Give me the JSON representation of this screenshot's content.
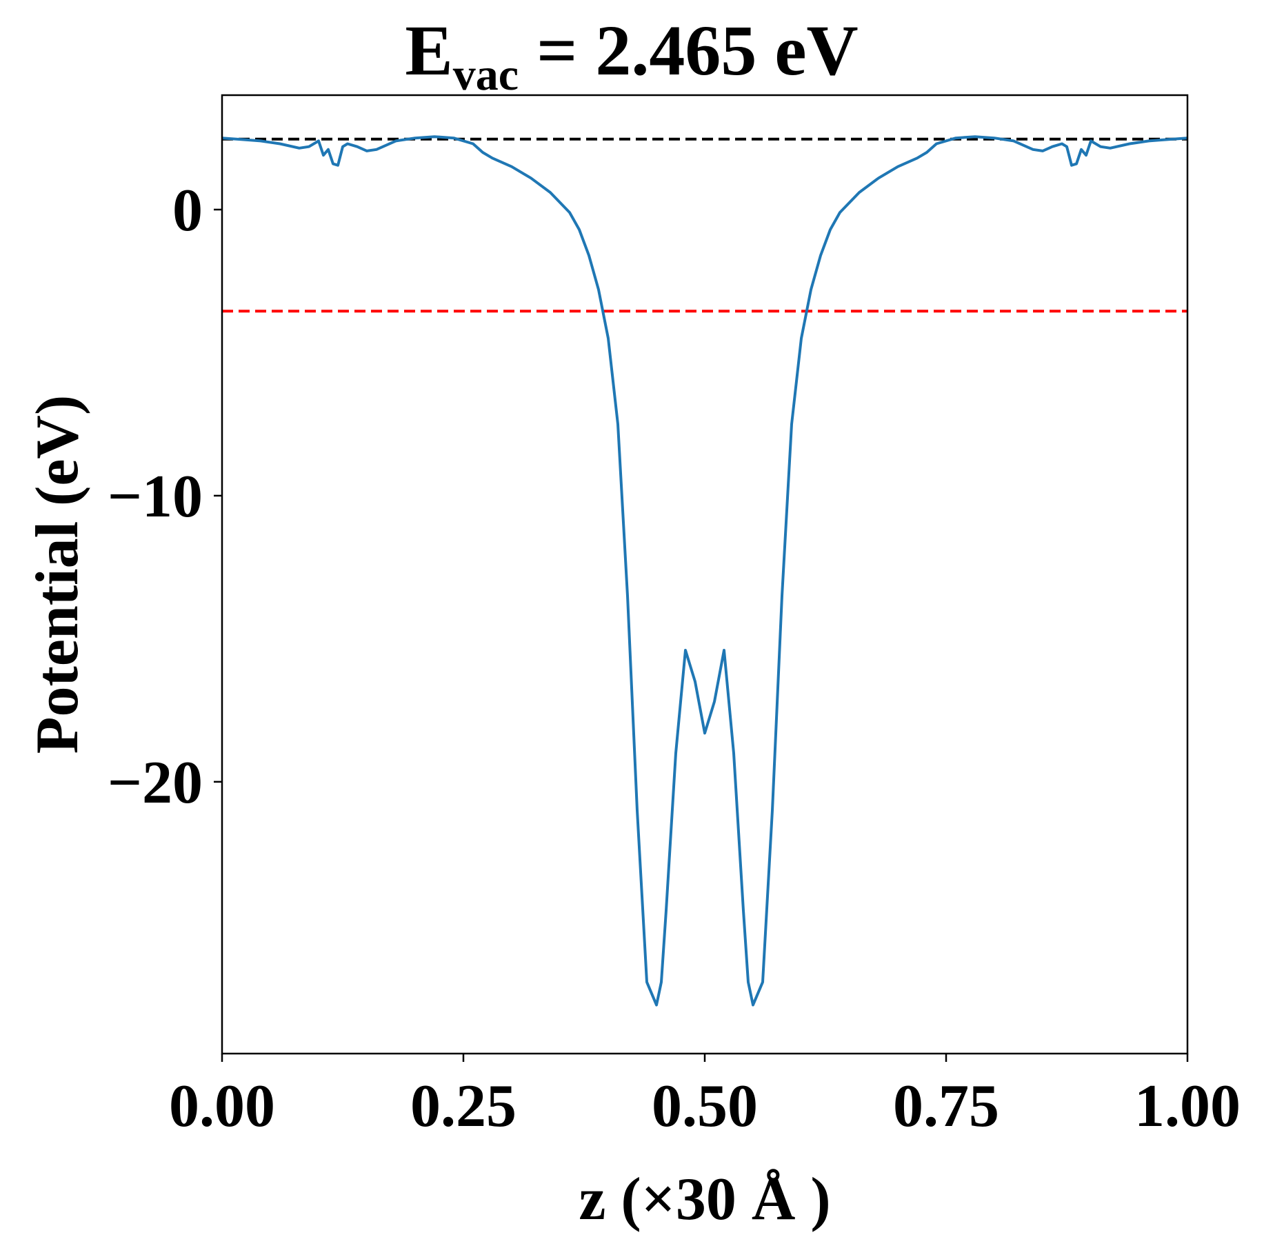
{
  "chart_data": {
    "type": "line",
    "title_main": "E",
    "title_sub": "vac",
    "title_rest": " = 2.465 eV",
    "xlabel": "z (×30 Å )",
    "ylabel": "Potential (eV)",
    "xlim": [
      0.0,
      1.0
    ],
    "ylim": [
      -29.5,
      4.0
    ],
    "xticks": [
      0.0,
      0.25,
      0.5,
      0.75,
      1.0
    ],
    "xtick_labels": [
      "0.00",
      "0.25",
      "0.50",
      "0.75",
      "1.00"
    ],
    "yticks": [
      0,
      -10,
      -20
    ],
    "ytick_labels": [
      "0",
      "−10",
      "−20"
    ],
    "grid": false,
    "reference_lines": [
      {
        "y": 2.465,
        "color": "#000000",
        "style": "dashed"
      },
      {
        "y": -3.55,
        "color": "#ff0000",
        "style": "dashed"
      }
    ],
    "series": [
      {
        "color": "#1f77b4",
        "x": [
          0.0,
          0.02,
          0.04,
          0.06,
          0.08,
          0.09,
          0.1,
          0.105,
          0.11,
          0.115,
          0.12,
          0.125,
          0.13,
          0.14,
          0.15,
          0.16,
          0.18,
          0.2,
          0.22,
          0.24,
          0.26,
          0.27,
          0.28,
          0.3,
          0.32,
          0.34,
          0.36,
          0.37,
          0.38,
          0.39,
          0.4,
          0.41,
          0.42,
          0.43,
          0.44,
          0.45,
          0.455,
          0.46,
          0.47,
          0.48,
          0.49,
          0.5,
          0.51,
          0.52,
          0.53,
          0.54,
          0.545,
          0.55,
          0.56,
          0.57,
          0.58,
          0.59,
          0.6,
          0.61,
          0.62,
          0.63,
          0.64,
          0.66,
          0.68,
          0.7,
          0.72,
          0.73,
          0.74,
          0.76,
          0.78,
          0.8,
          0.82,
          0.84,
          0.85,
          0.86,
          0.87,
          0.875,
          0.88,
          0.885,
          0.89,
          0.895,
          0.9,
          0.91,
          0.92,
          0.94,
          0.96,
          0.98,
          1.0
        ],
        "y": [
          2.5,
          2.45,
          2.4,
          2.3,
          2.15,
          2.2,
          2.4,
          1.9,
          2.1,
          1.6,
          1.55,
          2.2,
          2.3,
          2.2,
          2.05,
          2.1,
          2.4,
          2.5,
          2.55,
          2.5,
          2.3,
          2.0,
          1.8,
          1.5,
          1.1,
          0.6,
          -0.1,
          -0.7,
          -1.6,
          -2.8,
          -4.5,
          -7.5,
          -13.5,
          -21.0,
          -27.0,
          -27.8,
          -27.0,
          -24.5,
          -19.0,
          -15.4,
          -16.5,
          -18.3,
          -17.2,
          -15.4,
          -19.0,
          -24.5,
          -27.0,
          -27.8,
          -27.0,
          -21.0,
          -13.5,
          -7.5,
          -4.5,
          -2.8,
          -1.6,
          -0.7,
          -0.1,
          0.6,
          1.1,
          1.5,
          1.8,
          2.0,
          2.3,
          2.5,
          2.55,
          2.5,
          2.4,
          2.1,
          2.05,
          2.2,
          2.3,
          2.2,
          1.55,
          1.6,
          2.1,
          1.9,
          2.4,
          2.2,
          2.15,
          2.3,
          2.4,
          2.45,
          2.5
        ]
      }
    ]
  }
}
